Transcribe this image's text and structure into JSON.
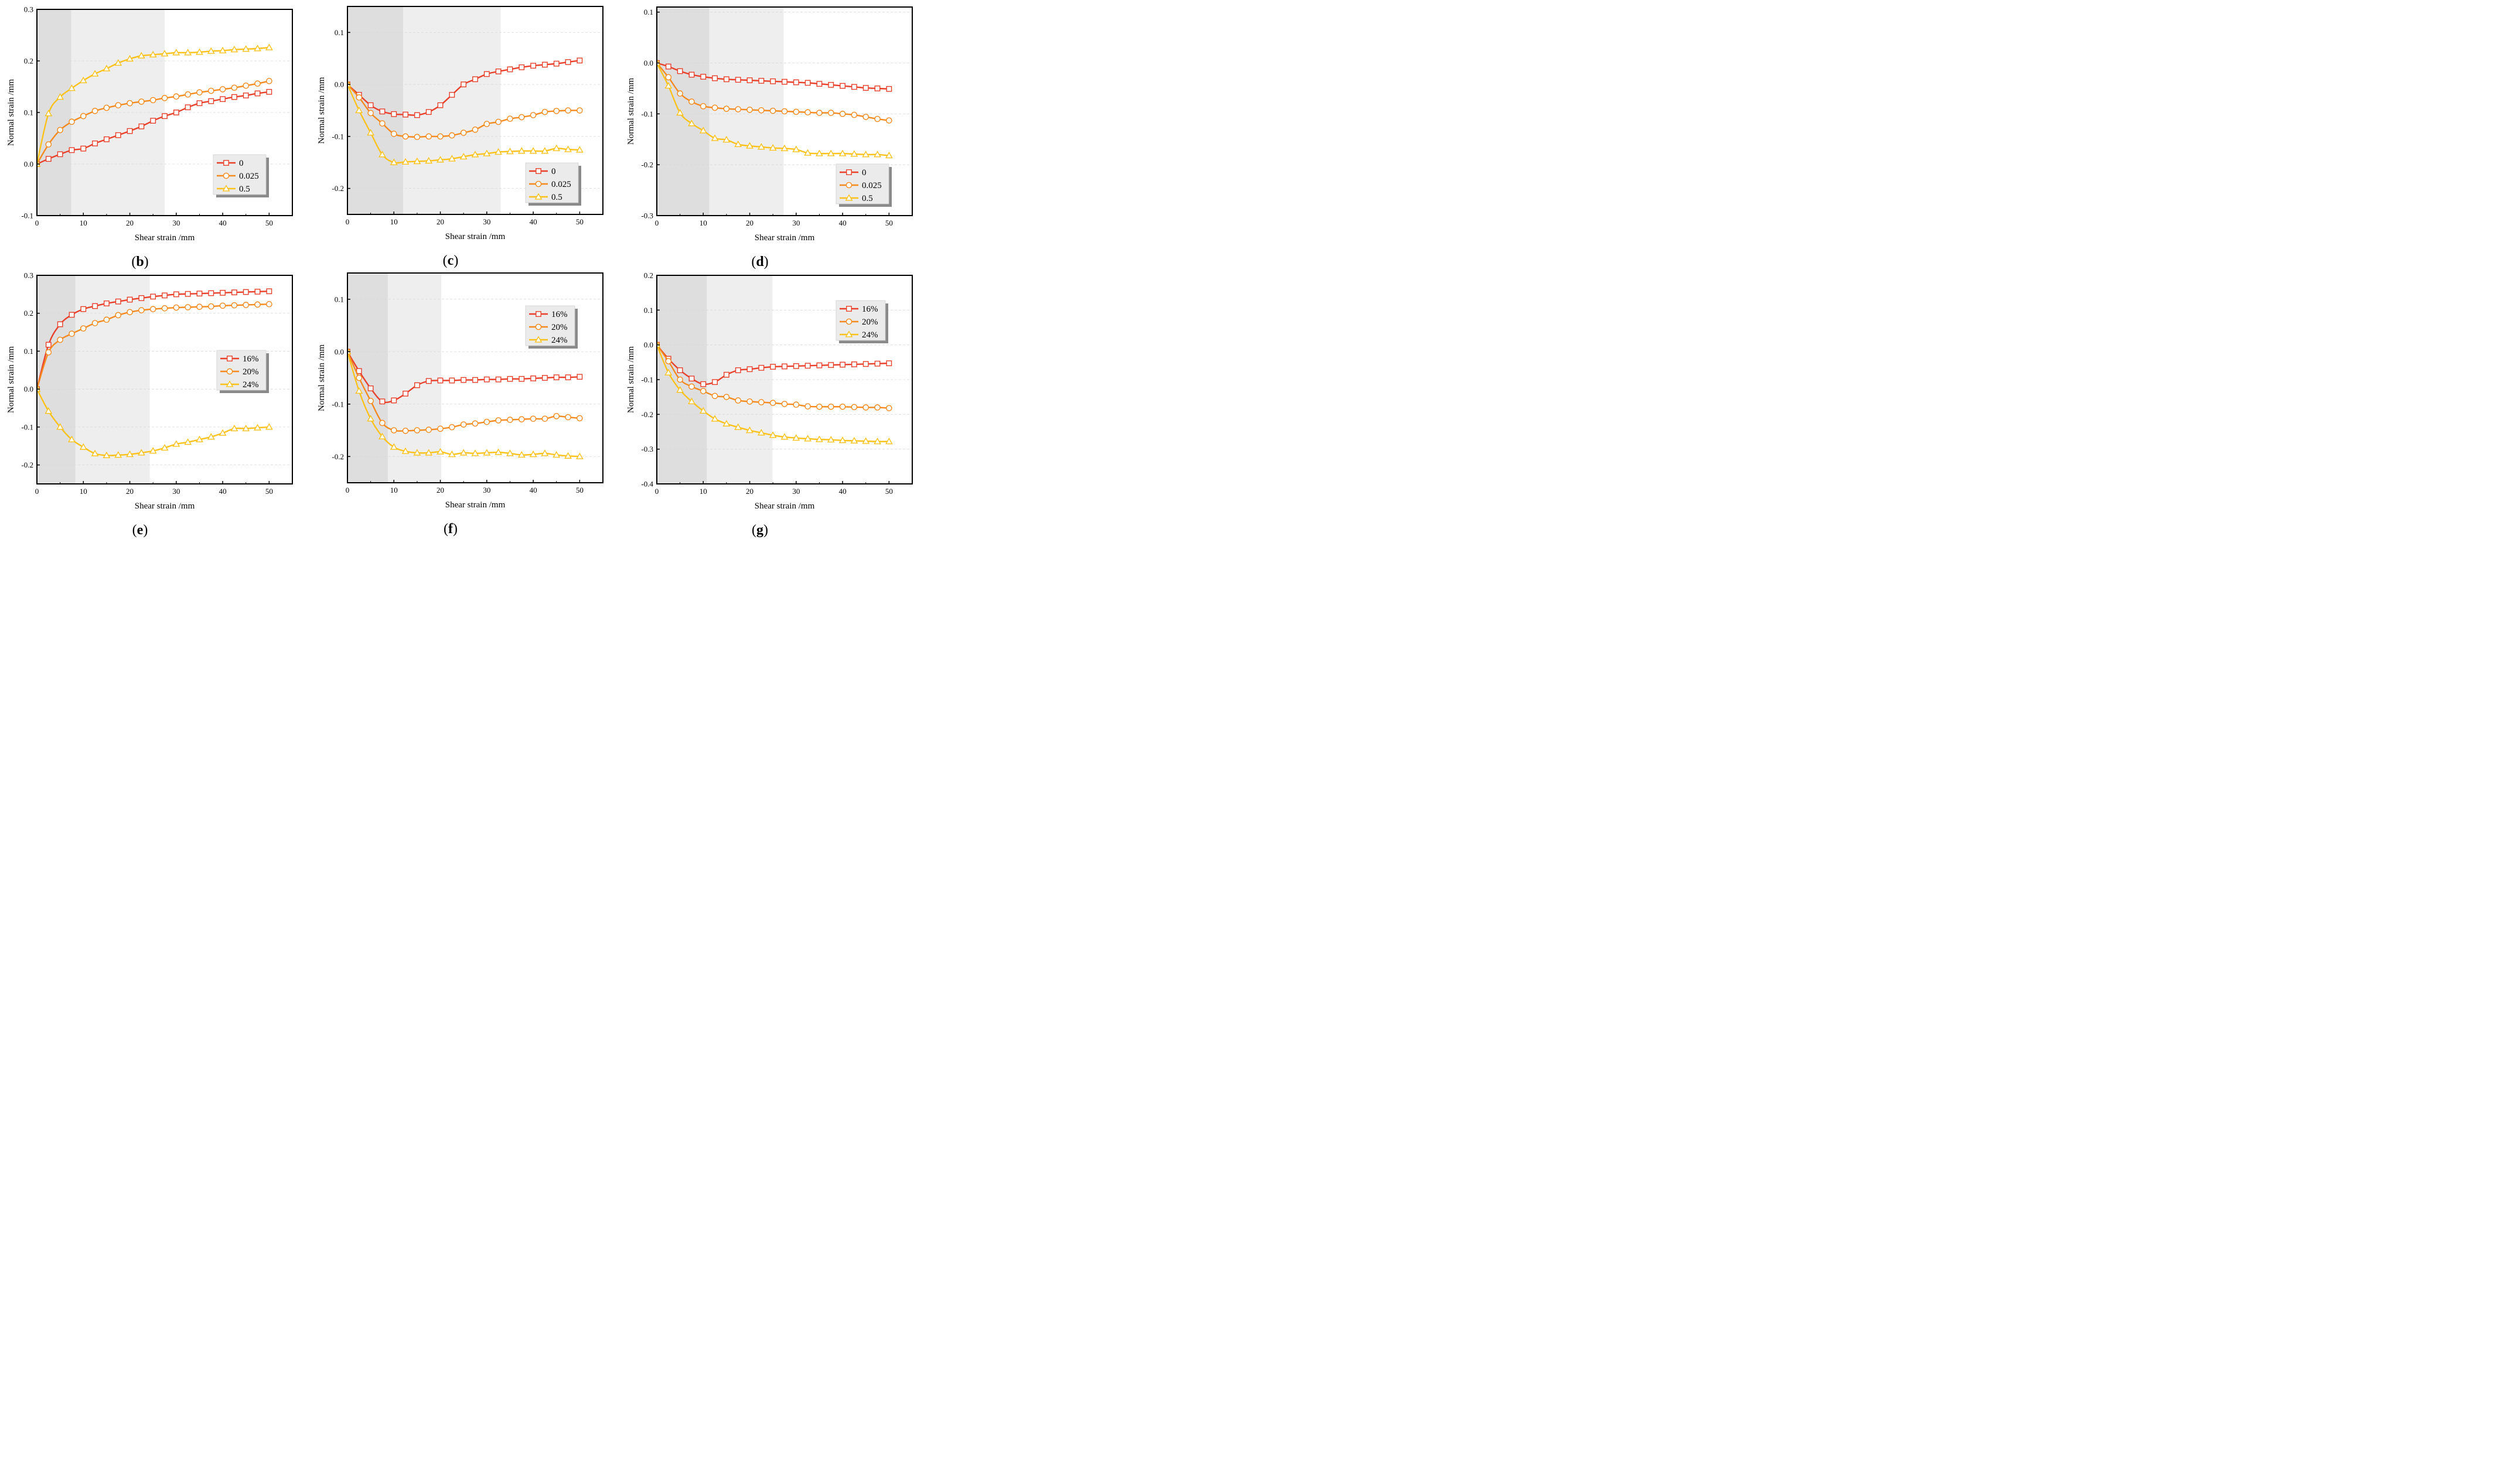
{
  "figure": {
    "series_colors": [
      "#e8402a",
      "#f58a1f",
      "#fcc21b"
    ],
    "shade_dark": "#dedede",
    "shade_light": "#eeeeee"
  },
  "chart_data": [
    {
      "id": "b",
      "type": "line",
      "panel_label": "b",
      "xlabel": "Shear strain /mm",
      "ylabel": "Normal strain /mm",
      "xlim": [
        0,
        55
      ],
      "ylim": [
        -0.1,
        0.3
      ],
      "xticks": [
        0,
        10,
        20,
        30,
        40,
        50
      ],
      "yticks": [
        -0.1,
        0.0,
        0.1,
        0.2,
        0.3
      ],
      "ytick_labels": [
        "-0.1",
        "0.0",
        "0.1",
        "0.2",
        "0.3"
      ],
      "shaded_regions": [
        [
          0,
          7.4
        ],
        [
          7.4,
          27.5
        ]
      ],
      "legend": "bottom-right",
      "x": [
        0,
        2.5,
        5,
        7.5,
        10,
        12.5,
        15,
        17.5,
        20,
        22.5,
        25,
        27.5,
        30,
        32.5,
        35,
        37.5,
        40,
        42.5,
        45,
        47.5,
        50
      ],
      "series": [
        {
          "name": "0",
          "marker": "square",
          "values": [
            0,
            0.01,
            0.019,
            0.027,
            0.03,
            0.04,
            0.048,
            0.056,
            0.064,
            0.073,
            0.084,
            0.093,
            0.1,
            0.11,
            0.118,
            0.122,
            0.126,
            0.13,
            0.133,
            0.137,
            0.14
          ]
        },
        {
          "name": "0.025",
          "marker": "circle",
          "values": [
            0,
            0.038,
            0.066,
            0.082,
            0.093,
            0.103,
            0.109,
            0.114,
            0.118,
            0.121,
            0.124,
            0.128,
            0.131,
            0.135,
            0.139,
            0.142,
            0.145,
            0.148,
            0.152,
            0.156,
            0.161
          ]
        },
        {
          "name": "0.5",
          "marker": "triangle",
          "values": [
            0,
            0.098,
            0.13,
            0.147,
            0.162,
            0.175,
            0.185,
            0.196,
            0.204,
            0.21,
            0.212,
            0.214,
            0.216,
            0.216,
            0.217,
            0.219,
            0.22,
            0.222,
            0.223,
            0.224,
            0.226
          ]
        }
      ]
    },
    {
      "id": "c",
      "type": "line",
      "panel_label": "c",
      "xlabel": "Shear strain /mm",
      "ylabel": "Normal strain /mm",
      "xlim": [
        0,
        55
      ],
      "ylim": [
        -0.25,
        0.15
      ],
      "xticks": [
        0,
        10,
        20,
        30,
        40,
        50
      ],
      "yticks": [
        -0.2,
        -0.1,
        0.0,
        0.1
      ],
      "ytick_labels": [
        "-0.2",
        "-0.1",
        "0.0",
        "0.1"
      ],
      "shaded_regions": [
        [
          0,
          12
        ],
        [
          12,
          33
        ]
      ],
      "legend": "bottom-right",
      "x": [
        0,
        2.5,
        5,
        7.5,
        10,
        12.5,
        15,
        17.5,
        20,
        22.5,
        25,
        27.5,
        30,
        32.5,
        35,
        37.5,
        40,
        42.5,
        45,
        47.5,
        50
      ],
      "series": [
        {
          "name": "0",
          "marker": "square",
          "values": [
            0,
            -0.02,
            -0.04,
            -0.052,
            -0.057,
            -0.058,
            -0.059,
            -0.053,
            -0.04,
            -0.02,
            0,
            0.01,
            0.02,
            0.025,
            0.029,
            0.033,
            0.036,
            0.038,
            0.04,
            0.043,
            0.046
          ]
        },
        {
          "name": "0.025",
          "marker": "circle",
          "values": [
            0,
            -0.025,
            -0.055,
            -0.075,
            -0.095,
            -0.1,
            -0.101,
            -0.1,
            -0.1,
            -0.098,
            -0.093,
            -0.087,
            -0.076,
            -0.072,
            -0.066,
            -0.063,
            -0.059,
            -0.053,
            -0.051,
            -0.05,
            -0.05
          ]
        },
        {
          "name": "0.5",
          "marker": "triangle",
          "values": [
            0,
            -0.05,
            -0.093,
            -0.135,
            -0.15,
            -0.149,
            -0.148,
            -0.147,
            -0.145,
            -0.143,
            -0.139,
            -0.135,
            -0.133,
            -0.13,
            -0.129,
            -0.128,
            -0.128,
            -0.128,
            -0.123,
            -0.125,
            -0.126
          ]
        }
      ]
    },
    {
      "id": "d",
      "type": "line",
      "panel_label": "d",
      "xlabel": "Shear strain /mm",
      "ylabel": "Normal strain /mm",
      "xlim": [
        0,
        55
      ],
      "ylim": [
        -0.3,
        0.11
      ],
      "xticks": [
        0,
        10,
        20,
        30,
        40,
        50
      ],
      "yticks": [
        -0.3,
        -0.2,
        -0.1,
        0.0,
        0.1
      ],
      "ytick_labels": [
        "-0.3",
        "-0.2",
        "-0.1",
        "0.0",
        "0.1"
      ],
      "shaded_regions": [
        [
          0,
          11.3
        ],
        [
          11.3,
          27.3
        ]
      ],
      "legend": "bottom-right",
      "x": [
        0,
        2.5,
        5,
        7.5,
        10,
        12.5,
        15,
        17.5,
        20,
        22.5,
        25,
        27.5,
        30,
        32.5,
        35,
        37.5,
        40,
        42.5,
        45,
        47.5,
        50
      ],
      "series": [
        {
          "name": "0",
          "marker": "square",
          "values": [
            0,
            -0.007,
            -0.016,
            -0.023,
            -0.027,
            -0.03,
            -0.032,
            -0.033,
            -0.034,
            -0.035,
            -0.036,
            -0.037,
            -0.038,
            -0.039,
            -0.041,
            -0.043,
            -0.045,
            -0.047,
            -0.049,
            -0.05,
            -0.051
          ]
        },
        {
          "name": "0.025",
          "marker": "circle",
          "values": [
            0,
            -0.028,
            -0.06,
            -0.076,
            -0.085,
            -0.088,
            -0.09,
            -0.091,
            -0.092,
            -0.093,
            -0.094,
            -0.095,
            -0.096,
            -0.097,
            -0.098,
            -0.098,
            -0.1,
            -0.102,
            -0.106,
            -0.11,
            -0.113
          ]
        },
        {
          "name": "0.5",
          "marker": "triangle",
          "values": [
            0,
            -0.045,
            -0.098,
            -0.119,
            -0.133,
            -0.148,
            -0.151,
            -0.16,
            -0.163,
            -0.165,
            -0.167,
            -0.168,
            -0.17,
            -0.177,
            -0.178,
            -0.178,
            -0.178,
            -0.179,
            -0.18,
            -0.18,
            -0.182
          ]
        }
      ]
    },
    {
      "id": "e",
      "type": "line",
      "panel_label": "e",
      "xlabel": "Shear strain /mm",
      "ylabel": "Normal strain /mm",
      "xlim": [
        0,
        55
      ],
      "ylim": [
        -0.25,
        0.3
      ],
      "xticks": [
        0,
        10,
        20,
        30,
        40,
        50
      ],
      "yticks": [
        -0.2,
        -0.1,
        0.0,
        0.1,
        0.2,
        0.3
      ],
      "ytick_labels": [
        "-0.2",
        "-0.1",
        "0.0",
        "0.1",
        "0.2",
        "0.3"
      ],
      "shaded_regions": [
        [
          0,
          8.3
        ],
        [
          8.3,
          24.3
        ]
      ],
      "legend": "middle-right",
      "x": [
        0,
        2.5,
        5,
        7.5,
        10,
        12.5,
        15,
        17.5,
        20,
        22.5,
        25,
        27.5,
        30,
        32.5,
        35,
        37.5,
        40,
        42.5,
        45,
        47.5,
        50
      ],
      "series": [
        {
          "name": "16%",
          "marker": "square",
          "values": [
            0,
            0.117,
            0.171,
            0.196,
            0.211,
            0.219,
            0.226,
            0.231,
            0.236,
            0.24,
            0.244,
            0.247,
            0.25,
            0.251,
            0.252,
            0.253,
            0.254,
            0.255,
            0.256,
            0.257,
            0.258
          ]
        },
        {
          "name": "20%",
          "marker": "circle",
          "values": [
            0,
            0.097,
            0.13,
            0.146,
            0.16,
            0.174,
            0.183,
            0.195,
            0.203,
            0.208,
            0.211,
            0.213,
            0.215,
            0.216,
            0.217,
            0.218,
            0.22,
            0.221,
            0.222,
            0.223,
            0.224
          ]
        },
        {
          "name": "24%",
          "marker": "triangle",
          "values": [
            0,
            -0.058,
            -0.1,
            -0.133,
            -0.153,
            -0.17,
            -0.175,
            -0.174,
            -0.172,
            -0.168,
            -0.163,
            -0.155,
            -0.145,
            -0.14,
            -0.133,
            -0.126,
            -0.116,
            -0.104,
            -0.104,
            -0.102,
            -0.1
          ]
        }
      ]
    },
    {
      "id": "f",
      "type": "line",
      "panel_label": "f",
      "xlabel": "Shear strain /mm",
      "ylabel": "Normal strain /mm",
      "xlim": [
        0,
        55
      ],
      "ylim": [
        -0.25,
        0.15
      ],
      "xticks": [
        0,
        10,
        20,
        30,
        40,
        50
      ],
      "yticks": [
        -0.2,
        -0.1,
        0.0,
        0.1
      ],
      "ytick_labels": [
        "-0.2",
        "-0.1",
        "0.0",
        "0.1"
      ],
      "shaded_regions": [
        [
          0,
          8.7
        ],
        [
          8.7,
          20.2
        ]
      ],
      "legend": "top-right",
      "x": [
        0,
        2.5,
        5,
        7.5,
        10,
        12.5,
        15,
        17.5,
        20,
        22.5,
        25,
        27.5,
        30,
        32.5,
        35,
        37.5,
        40,
        42.5,
        45,
        47.5,
        50
      ],
      "series": [
        {
          "name": "16%",
          "marker": "square",
          "values": [
            0,
            -0.037,
            -0.07,
            -0.095,
            -0.093,
            -0.08,
            -0.064,
            -0.056,
            -0.055,
            -0.055,
            -0.054,
            -0.054,
            -0.053,
            -0.053,
            -0.052,
            -0.052,
            -0.051,
            -0.05,
            -0.049,
            -0.049,
            -0.048
          ]
        },
        {
          "name": "20%",
          "marker": "circle",
          "values": [
            0,
            -0.05,
            -0.094,
            -0.136,
            -0.15,
            -0.151,
            -0.15,
            -0.149,
            -0.147,
            -0.144,
            -0.139,
            -0.137,
            -0.134,
            -0.131,
            -0.13,
            -0.129,
            -0.128,
            -0.128,
            -0.123,
            -0.125,
            -0.127
          ]
        },
        {
          "name": "24%",
          "marker": "triangle",
          "values": [
            0,
            -0.075,
            -0.128,
            -0.162,
            -0.182,
            -0.19,
            -0.193,
            -0.193,
            -0.191,
            -0.196,
            -0.193,
            -0.194,
            -0.193,
            -0.192,
            -0.194,
            -0.197,
            -0.196,
            -0.194,
            -0.197,
            -0.199,
            -0.2
          ]
        }
      ]
    },
    {
      "id": "g",
      "type": "line",
      "panel_label": "g",
      "xlabel": "Shear strain /mm",
      "ylabel": "Normal strain /mm",
      "xlim": [
        0,
        55
      ],
      "ylim": [
        -0.4,
        0.2
      ],
      "xticks": [
        0,
        10,
        20,
        30,
        40,
        50
      ],
      "yticks": [
        -0.4,
        -0.3,
        -0.2,
        -0.1,
        0.0,
        0.1,
        0.2
      ],
      "ytick_labels": [
        "-0.4",
        "-0.3",
        "-0.2",
        "-0.1",
        "0.0",
        "0.1",
        "0.2"
      ],
      "shaded_regions": [
        [
          0,
          10.8
        ],
        [
          10.8,
          24.9
        ]
      ],
      "legend": "top-right",
      "x": [
        0,
        2.5,
        5,
        7.5,
        10,
        12.5,
        15,
        17.5,
        20,
        22.5,
        25,
        27.5,
        30,
        32.5,
        35,
        37.5,
        40,
        42.5,
        45,
        47.5,
        50
      ],
      "series": [
        {
          "name": "16%",
          "marker": "square",
          "values": [
            0,
            -0.04,
            -0.073,
            -0.097,
            -0.113,
            -0.107,
            -0.086,
            -0.073,
            -0.07,
            -0.066,
            -0.063,
            -0.062,
            -0.061,
            -0.06,
            -0.059,
            -0.058,
            -0.057,
            -0.056,
            -0.055,
            -0.054,
            -0.053
          ]
        },
        {
          "name": "20%",
          "marker": "circle",
          "values": [
            0,
            -0.047,
            -0.1,
            -0.12,
            -0.133,
            -0.147,
            -0.15,
            -0.16,
            -0.163,
            -0.165,
            -0.167,
            -0.17,
            -0.172,
            -0.177,
            -0.178,
            -0.178,
            -0.178,
            -0.179,
            -0.18,
            -0.18,
            -0.182
          ]
        },
        {
          "name": "24%",
          "marker": "triangle",
          "values": [
            0,
            -0.08,
            -0.13,
            -0.163,
            -0.19,
            -0.213,
            -0.227,
            -0.237,
            -0.246,
            -0.253,
            -0.26,
            -0.265,
            -0.268,
            -0.27,
            -0.272,
            -0.273,
            -0.275,
            -0.276,
            -0.277,
            -0.278,
            -0.278
          ]
        }
      ]
    }
  ]
}
